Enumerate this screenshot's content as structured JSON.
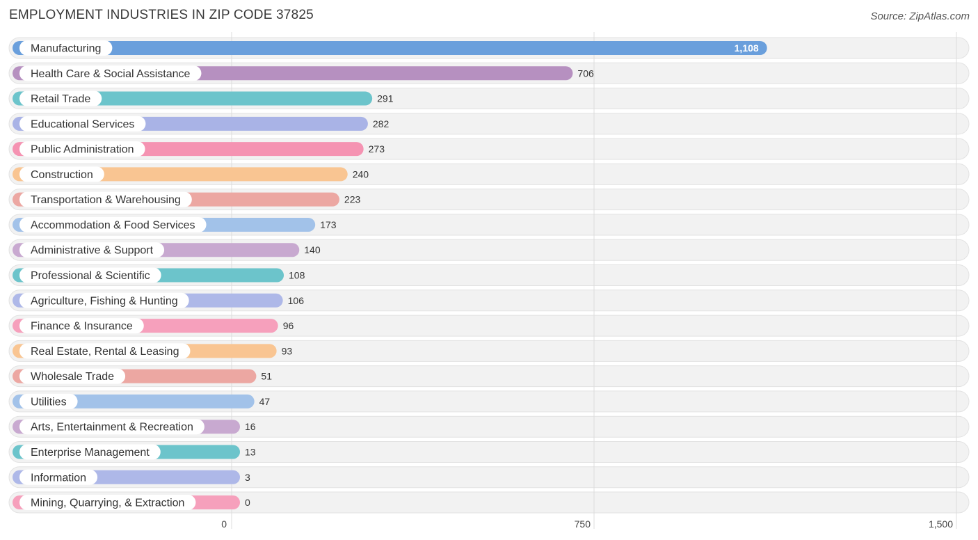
{
  "header": {
    "title": "EMPLOYMENT INDUSTRIES IN ZIP CODE 37825",
    "source": "Source: ZipAtlas.com"
  },
  "chart_data": {
    "type": "bar",
    "orientation": "horizontal",
    "title": "EMPLOYMENT INDUSTRIES IN ZIP CODE 37825",
    "categories": [
      "Manufacturing",
      "Health Care & Social Assistance",
      "Retail Trade",
      "Educational Services",
      "Public Administration",
      "Construction",
      "Transportation & Warehousing",
      "Accommodation & Food Services",
      "Administrative & Support",
      "Professional & Scientific",
      "Agriculture, Fishing & Hunting",
      "Finance & Insurance",
      "Real Estate, Rental & Leasing",
      "Wholesale Trade",
      "Utilities",
      "Arts, Entertainment & Recreation",
      "Enterprise Management",
      "Information",
      "Mining, Quarrying, & Extraction"
    ],
    "values": [
      1108,
      706,
      291,
      282,
      273,
      240,
      223,
      173,
      140,
      108,
      106,
      96,
      93,
      51,
      47,
      16,
      13,
      3,
      0
    ],
    "value_labels": [
      "1,108",
      "706",
      "291",
      "282",
      "273",
      "240",
      "223",
      "173",
      "140",
      "108",
      "106",
      "96",
      "93",
      "51",
      "47",
      "16",
      "13",
      "3",
      "0"
    ],
    "colors": [
      "#6a9fdc",
      "#b690c0",
      "#6cc4cb",
      "#a9b3e6",
      "#f593b2",
      "#f9c592",
      "#eca7a2",
      "#a2c2e9",
      "#c8a9d0",
      "#6cc4cb",
      "#aeb8e8",
      "#f6a0bc",
      "#f9c592",
      "#eca7a2",
      "#a2c2e9",
      "#c8a9d0",
      "#6cc4cb",
      "#aeb8e8",
      "#f6a0bc"
    ],
    "xlim": [
      0,
      1500
    ],
    "xticks": [
      0,
      750,
      1500
    ],
    "xtick_labels": [
      "0",
      "750",
      "1,500"
    ],
    "grid": true
  }
}
